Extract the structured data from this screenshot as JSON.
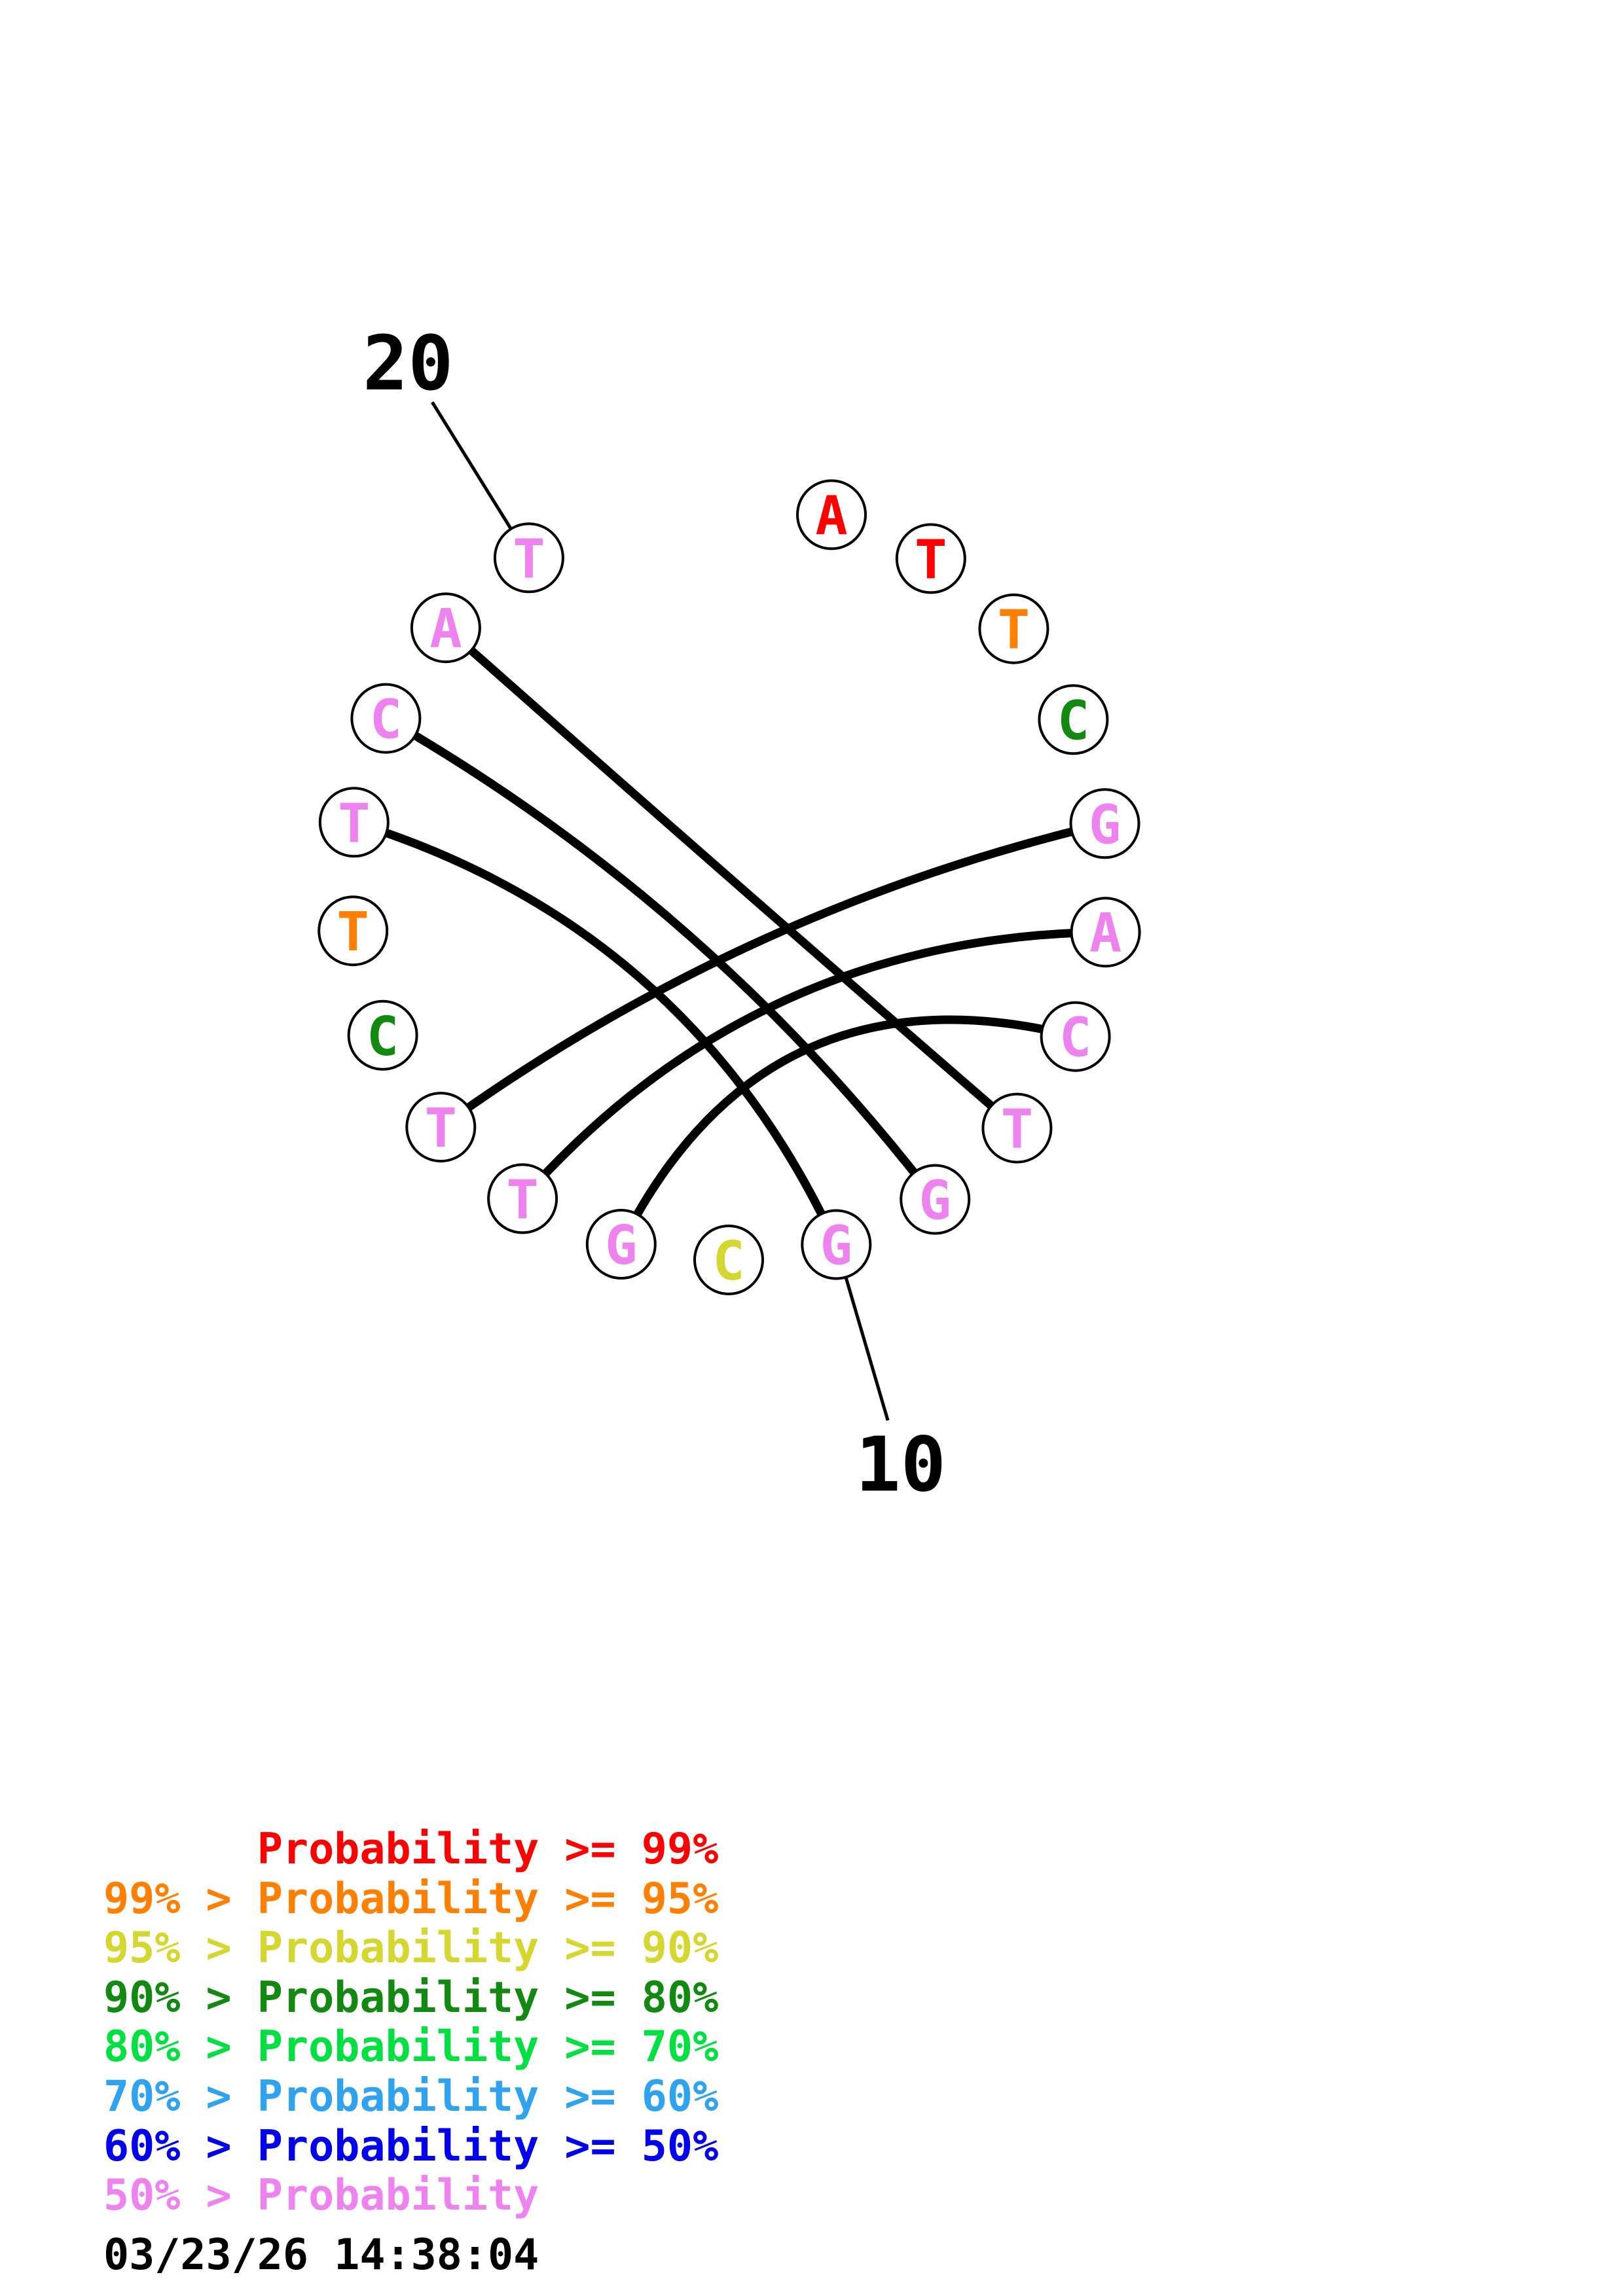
{
  "plot": {
    "sequence": [
      {
        "index": 1,
        "base": "A",
        "prob_class": "p99"
      },
      {
        "index": 2,
        "base": "T",
        "prob_class": "p99"
      },
      {
        "index": 3,
        "base": "T",
        "prob_class": "p95"
      },
      {
        "index": 4,
        "base": "C",
        "prob_class": "p80"
      },
      {
        "index": 5,
        "base": "G",
        "prob_class": "lt50"
      },
      {
        "index": 6,
        "base": "A",
        "prob_class": "lt50"
      },
      {
        "index": 7,
        "base": "C",
        "prob_class": "lt50"
      },
      {
        "index": 8,
        "base": "T",
        "prob_class": "lt50"
      },
      {
        "index": 9,
        "base": "G",
        "prob_class": "lt50"
      },
      {
        "index": 10,
        "base": "G",
        "prob_class": "lt50"
      },
      {
        "index": 11,
        "base": "C",
        "prob_class": "p90"
      },
      {
        "index": 12,
        "base": "G",
        "prob_class": "lt50"
      },
      {
        "index": 13,
        "base": "T",
        "prob_class": "lt50"
      },
      {
        "index": 14,
        "base": "T",
        "prob_class": "lt50"
      },
      {
        "index": 15,
        "base": "C",
        "prob_class": "p80"
      },
      {
        "index": 16,
        "base": "T",
        "prob_class": "p95"
      },
      {
        "index": 17,
        "base": "T",
        "prob_class": "lt50"
      },
      {
        "index": 18,
        "base": "C",
        "prob_class": "lt50"
      },
      {
        "index": 19,
        "base": "A",
        "prob_class": "lt50"
      },
      {
        "index": 20,
        "base": "T",
        "prob_class": "lt50"
      }
    ],
    "pairs": [
      [
        5,
        14
      ],
      [
        6,
        13
      ],
      [
        7,
        12
      ],
      [
        8,
        19
      ],
      [
        9,
        18
      ],
      [
        10,
        17
      ]
    ],
    "index_labels": [
      {
        "text": "10",
        "index": 10
      },
      {
        "text": "20",
        "index": 20
      }
    ]
  },
  "legend": {
    "entries": [
      {
        "text": "      Probability >= 99%",
        "prob_class": "p99"
      },
      {
        "text": "99% > Probability >= 95%",
        "prob_class": "p95"
      },
      {
        "text": "95% > Probability >= 90%",
        "prob_class": "p90"
      },
      {
        "text": "90% > Probability >= 80%",
        "prob_class": "p80"
      },
      {
        "text": "80% > Probability >= 70%",
        "prob_class": "p70"
      },
      {
        "text": "70% > Probability >= 60%",
        "prob_class": "p60"
      },
      {
        "text": "60% > Probability >= 50%",
        "prob_class": "p50"
      },
      {
        "text": "50% > Probability",
        "prob_class": "lt50"
      }
    ]
  },
  "colors": {
    "p99": "#FF0000",
    "p95": "#FF8000",
    "p90": "#D6D630",
    "p80": "#128A12",
    "p70": "#00E040",
    "p60": "#2FA2F0",
    "p50": "#0000EE",
    "lt50": "#EE82EE",
    "ink": "#000000"
  },
  "footer": {
    "timestamp": "03/23/26 14:38:04"
  }
}
